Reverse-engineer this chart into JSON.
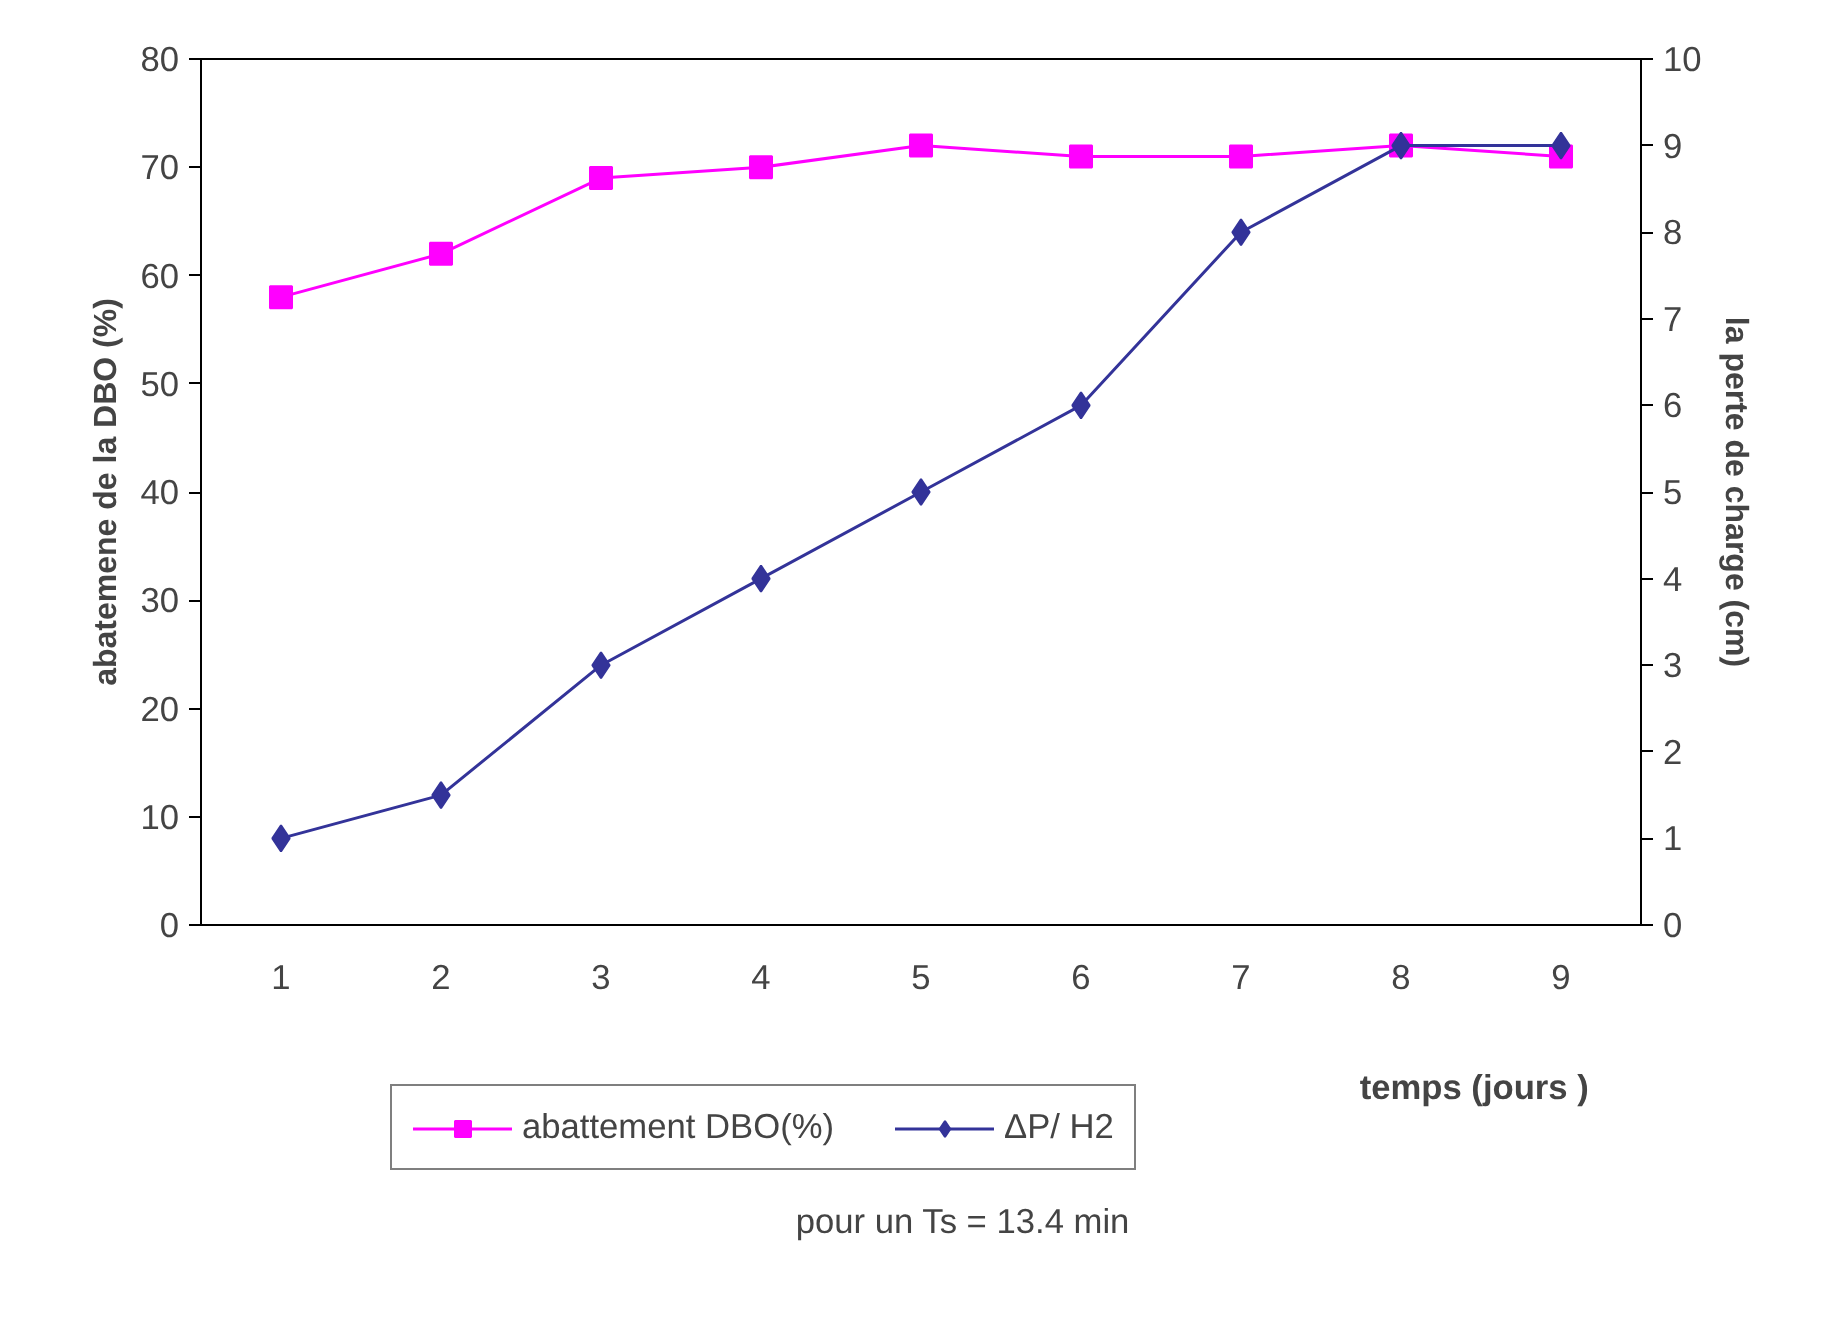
{
  "chart_data": {
    "type": "line",
    "categories": [
      "1",
      "2",
      "3",
      "4",
      "5",
      "6",
      "7",
      "8",
      "9"
    ],
    "xlabel": "temps (jours )",
    "ylabel": "abatemene de la DBO (%)",
    "y2label": "la perte de charge (cm)",
    "ylim": [
      0,
      80
    ],
    "yticks": [
      0,
      10,
      20,
      30,
      40,
      50,
      60,
      70,
      80
    ],
    "y2lim": [
      0,
      10
    ],
    "y2ticks": [
      0,
      1,
      2,
      3,
      4,
      5,
      6,
      7,
      8,
      9,
      10
    ],
    "series": [
      {
        "name": "abattement DBO(%)",
        "color": "#ff00ff",
        "marker": "square",
        "values": [
          58,
          62,
          69,
          70,
          72,
          71,
          71,
          72,
          71
        ]
      },
      {
        "name": "ΔP/ H2",
        "color": "#333399",
        "marker": "diamond",
        "axis": "y2",
        "values": [
          1,
          1.5,
          3,
          4,
          5,
          6,
          8,
          9,
          9
        ]
      }
    ],
    "legend": "bottom",
    "grid": false,
    "annotations": [
      "pour un Ts = 13.4 min"
    ]
  }
}
